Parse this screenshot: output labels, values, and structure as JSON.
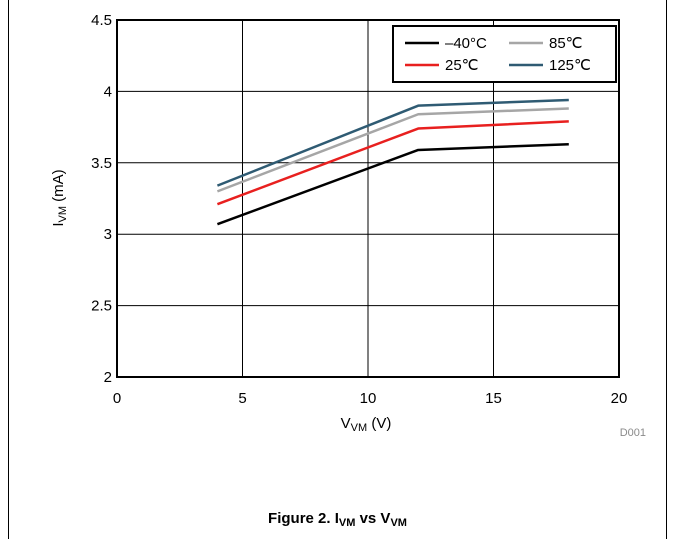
{
  "caption": {
    "prefix": "Figure 2. I",
    "sub1": "VM",
    "mid": " vs V",
    "sub2": "VM"
  },
  "chart_data": {
    "type": "line",
    "xlabel": {
      "main": "V",
      "sub": "VM",
      "unit": " (V)"
    },
    "ylabel": {
      "main": "I",
      "sub": "VM",
      "unit": " (mA)"
    },
    "xlim": [
      0,
      20
    ],
    "ylim": [
      2,
      4.5
    ],
    "xticks": [
      "0",
      "5",
      "10",
      "15",
      "20"
    ],
    "yticks": [
      "2",
      "2.5",
      "3",
      "3.5",
      "4",
      "4.5"
    ],
    "grid": true,
    "legend_position": "top-right",
    "figure_code": "D001",
    "series": [
      {
        "name": "–40°C",
        "color": "#000000",
        "x": [
          4,
          12,
          18
        ],
        "y": [
          3.07,
          3.59,
          3.63
        ]
      },
      {
        "name": "25℃",
        "color": "#e8201f",
        "x": [
          4,
          12,
          18
        ],
        "y": [
          3.21,
          3.74,
          3.79
        ]
      },
      {
        "name": "85℃",
        "color": "#a6a6a6",
        "x": [
          4,
          12,
          18
        ],
        "y": [
          3.3,
          3.84,
          3.88
        ]
      },
      {
        "name": "125℃",
        "color": "#2f5b73",
        "x": [
          4,
          12,
          18
        ],
        "y": [
          3.34,
          3.9,
          3.94
        ]
      }
    ]
  }
}
